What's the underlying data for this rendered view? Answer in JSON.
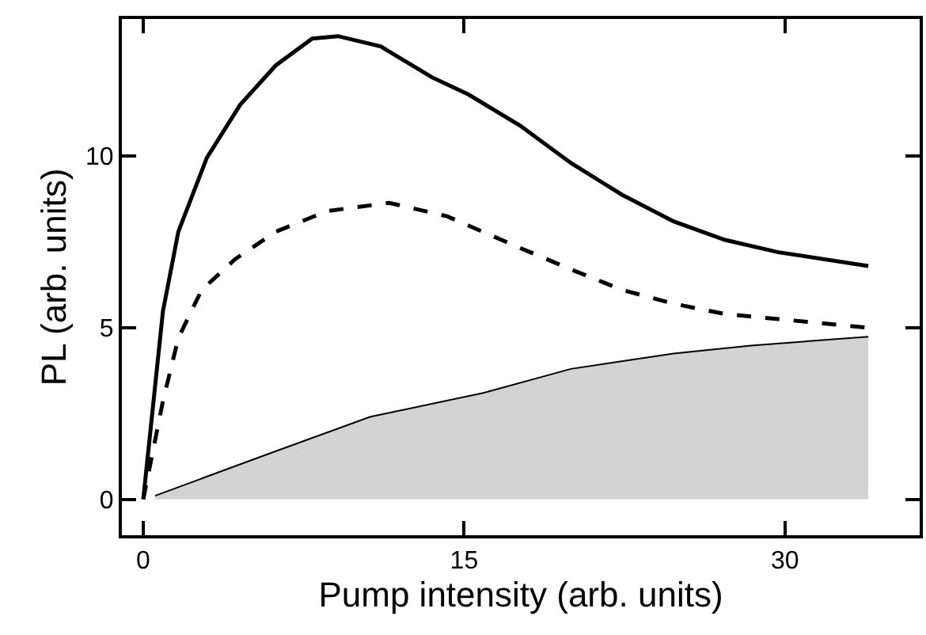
{
  "chart_data": {
    "type": "line",
    "xlabel": "Pump intensity (arb. units)",
    "ylabel": "PL (arb. units)",
    "xlim": [
      -1,
      36.3
    ],
    "ylim": [
      -1.05,
      14
    ],
    "xticks": [
      0,
      15,
      30
    ],
    "yticks": [
      0,
      5,
      10
    ],
    "marker": "none",
    "series": [
      {
        "color": "#000000",
        "line_style": "solid",
        "x": [
          0,
          0.92,
          1.64,
          2.97,
          4.53,
          6.2,
          7.9,
          9.1,
          11.1,
          13.5,
          15.2,
          17.6,
          20,
          22.4,
          24.8,
          27.2,
          29.7,
          33.9
        ],
        "values": [
          0,
          5.48,
          7.8,
          9.95,
          11.5,
          12.65,
          13.43,
          13.5,
          13.2,
          12.3,
          11.8,
          10.9,
          9.8,
          8.87,
          8.1,
          7.56,
          7.2,
          6.8
        ]
      },
      {
        "color": "#000000",
        "line_style": "dashed",
        "x": [
          0,
          0.92,
          1.64,
          2.73,
          4.3,
          6.2,
          8.6,
          11.5,
          14.2,
          17.6,
          20,
          22.4,
          24.8,
          27.2,
          29.7,
          33.9
        ],
        "values": [
          0,
          2.86,
          4.7,
          6.1,
          7.0,
          7.8,
          8.4,
          8.64,
          8.25,
          7.33,
          6.7,
          6.1,
          5.7,
          5.4,
          5.25,
          5.0
        ]
      },
      {
        "type": "area",
        "color": "#d3d3d3",
        "x": [
          0.55,
          5.75,
          10.6,
          15.9,
          20,
          24.8,
          28.4,
          33.9
        ],
        "values": [
          0.1,
          1.3,
          2.4,
          3.1,
          3.8,
          4.25,
          4.48,
          4.74
        ]
      }
    ]
  }
}
